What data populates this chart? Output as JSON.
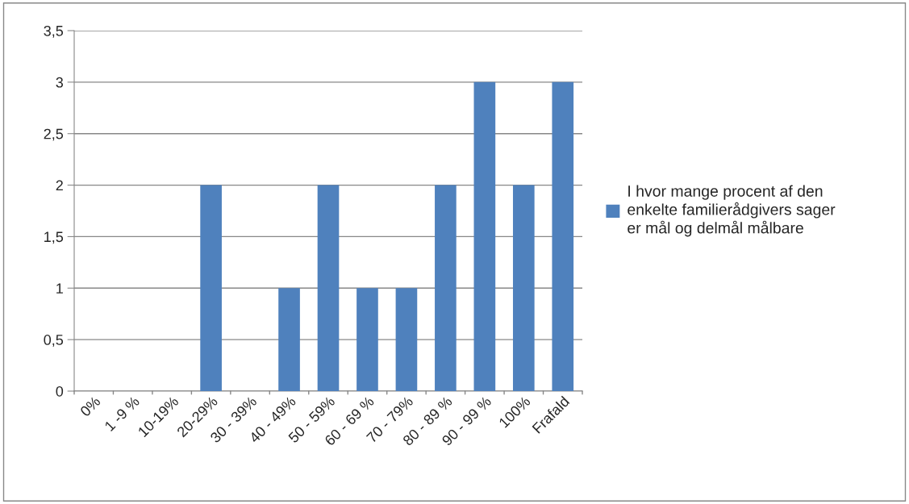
{
  "chart_data": {
    "type": "bar",
    "categories": [
      "0%",
      "1 -9 %",
      "10-19%",
      "20-29%",
      "30 - 39%",
      "40 - 49%",
      "50 - 59%",
      "60 - 69 %",
      "70 - 79%",
      "80 - 89 %",
      "90 - 99 %",
      "100%",
      "Frafald"
    ],
    "series": [
      {
        "name": "I hvor mange procent af den\nenkelte familierådgivers sager\ner mål og delmål målbare",
        "color": "#4f81bd",
        "values": [
          0,
          0,
          0,
          2,
          0,
          1,
          2,
          1,
          1,
          2,
          3,
          2,
          3
        ]
      }
    ],
    "ylim": [
      0,
      3.5
    ],
    "yticks": [
      0,
      {
        "value": 0.5,
        "label": "0,5"
      },
      1,
      {
        "value": 1.5,
        "label": "1,5"
      },
      2,
      {
        "value": 2.5,
        "label": "2,5"
      },
      3,
      {
        "value": 3.5,
        "label": "3,5"
      }
    ],
    "grid": "y",
    "legend": "right"
  }
}
